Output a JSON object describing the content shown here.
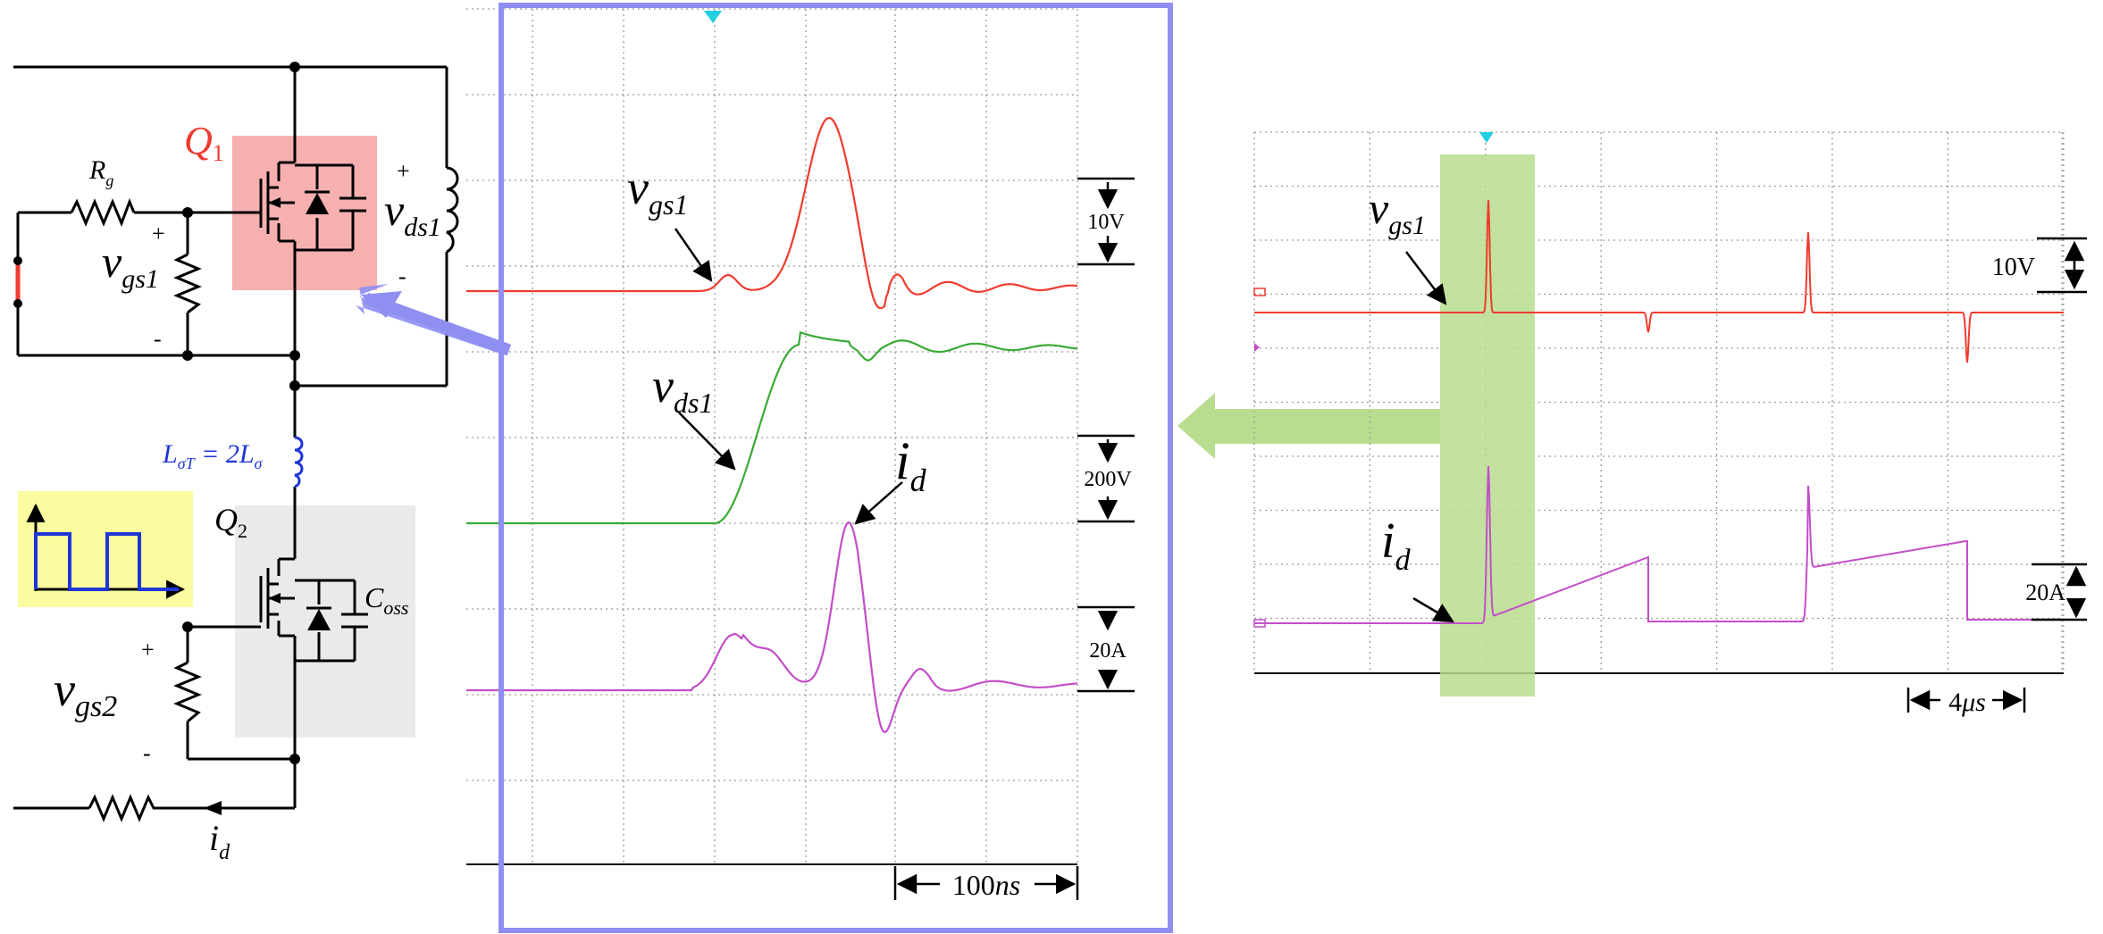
{
  "colors": {
    "red": "#ef3b2f",
    "green": "#3aaa35",
    "magenta": "#c34ec8",
    "blue_frame": "#8f8ff2",
    "red_box": "#f7b0b0",
    "gray_box": "#eaeaea",
    "yellow_box": "#fbfba0",
    "green_band": "#b9dd8f",
    "inductor_blue": "#1d35d9",
    "cyan_marker": "#1fd0e0"
  },
  "circuit": {
    "q1_label": {
      "main": "Q",
      "sub": "1"
    },
    "rg_label": {
      "main": "R",
      "sub": "g"
    },
    "vgs1_label": {
      "main": "v",
      "sub": "gs1"
    },
    "vgs1_plus": "+",
    "vgs1_minus": "-",
    "vds1_label": {
      "main": "v",
      "sub": "ds1"
    },
    "vds1_plus": "+",
    "vds1_minus": "-",
    "inductor_label": {
      "main": "L",
      "sub": "σT",
      "eq": " = 2L",
      "sub2": "σ"
    },
    "q2_label": {
      "main": "Q",
      "sub": "2"
    },
    "coss_label": {
      "main": "C",
      "sub": "oss"
    },
    "vgs2_label": {
      "main": "v",
      "sub": "gs2"
    },
    "vgs2_plus": "+",
    "vgs2_minus": "-",
    "id_label": {
      "main": "i",
      "sub": "d"
    }
  },
  "zoom_scope": {
    "vgs1_label": {
      "main": "v",
      "sub": "gs1"
    },
    "vds1_label": {
      "main": "v",
      "sub": "ds1"
    },
    "id_label": {
      "main": "i",
      "sub": "d"
    },
    "scale_vgs": "10V",
    "scale_vds": "200V",
    "scale_id": "20A",
    "time_scale": {
      "value": "100",
      "unit": "ns"
    }
  },
  "wide_scope": {
    "vgs1_label": {
      "main": "v",
      "sub": "gs1"
    },
    "id_label": {
      "main": "i",
      "sub": "d"
    },
    "scale_vgs": "10V",
    "scale_id": "20A",
    "time_scale": {
      "value": "4",
      "unit": "μs"
    }
  }
}
